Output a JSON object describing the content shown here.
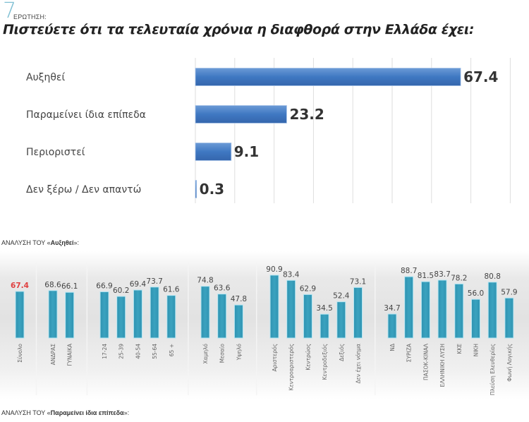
{
  "question": {
    "number": "7",
    "label": "ΕΡΩΤΗΣΗ:",
    "title": "Πιστεύετε ότι τα τελευταία χρόνια η διαφθορά στην Ελλάδα έχει:"
  },
  "sections": {
    "breakdown1_prefix": "ΑΝΑΛΥΣΗ ΤΟΥ «",
    "breakdown1_bold": "Αυξηθεί",
    "breakdown1_suffix": "»:",
    "breakdown2_prefix": "ΑΝΑΛΥΣΗ ΤΟΥ «",
    "breakdown2_bold": "Παραμείνει ίδια επίπεδα",
    "breakdown2_suffix": "»:"
  },
  "colors": {
    "main_bar": "#3f78c2",
    "breakdown_bar": "#3aa2bf",
    "highlight_value": "#e04040"
  },
  "chart_data": [
    {
      "type": "bar",
      "orientation": "horizontal",
      "title": "Πιστεύετε ότι τα τελευταία χρόνια η διαφθορά στην Ελλάδα έχει:",
      "categories": [
        "Αυξηθεί",
        "Παραμείνει ίδια επίπεδα",
        "Περιοριστεί",
        "Δεν ξέρω / Δεν απαντώ"
      ],
      "values": [
        67.4,
        23.2,
        9.1,
        0.3
      ],
      "value_labels": [
        "67.4",
        "23.2",
        "9.1",
        "0.3"
      ],
      "xlim": [
        0,
        80
      ],
      "grid": true,
      "xlabel": "",
      "ylabel": ""
    },
    {
      "type": "bar",
      "orientation": "vertical",
      "title": "ΑΝΑΛΥΣΗ ΤΟΥ «Αυξηθεί»:",
      "groups": [
        {
          "categories": [
            "Σύνολο"
          ],
          "values": [
            67.4
          ],
          "labels": [
            "67.4"
          ],
          "highlight": true
        },
        {
          "categories": [
            "ΑΝΔΡΑΣ",
            "ΓΥΝΑΙΚΑ"
          ],
          "values": [
            68.6,
            66.1
          ],
          "labels": [
            "68.6",
            "66.1"
          ]
        },
        {
          "categories": [
            "17-24",
            "25-39",
            "40-54",
            "55-64",
            "65 +"
          ],
          "values": [
            66.9,
            60.2,
            69.4,
            73.7,
            61.6
          ],
          "labels": [
            "66.9",
            "60.2",
            "69.4",
            "73.7",
            "61.6"
          ]
        },
        {
          "categories": [
            "Χαμηλό",
            "Μεσαίο",
            "Υψηλό"
          ],
          "values": [
            74.8,
            63.6,
            47.8
          ],
          "labels": [
            "74.8",
            "63.6",
            "47.8"
          ]
        },
        {
          "categories": [
            "Αριστερός",
            "Κεντροαριστερός",
            "Κεντρώος",
            "Κεντροδεξιός",
            "Δεξιός",
            "Δεν έχει νόημα"
          ],
          "values": [
            90.9,
            83.4,
            62.9,
            34.5,
            52.4,
            73.1
          ],
          "labels": [
            "90.9",
            "83.4",
            "62.9",
            "34.5",
            "52.4",
            "73.1"
          ]
        },
        {
          "categories": [
            "ΝΔ",
            "ΣΥΡΙΖΑ",
            "ΠΑΣΟΚ-ΚΙΝΑΛ",
            "ΕΛΛΗΝΙΚΗ ΛΥΣΗ",
            "ΚΚΕ",
            "ΝΙΚΗ",
            "Πλεύση Ελευθερίας",
            "Φωνή Λογικής"
          ],
          "values": [
            34.7,
            88.7,
            81.5,
            83.7,
            78.2,
            56.0,
            80.8,
            57.9
          ],
          "labels": [
            "34.7",
            "88.7",
            "81.5",
            "83.7",
            "78.2",
            "56.0",
            "80.8",
            "57.9"
          ]
        }
      ],
      "ylim": [
        0,
        100
      ],
      "grid": false
    }
  ]
}
